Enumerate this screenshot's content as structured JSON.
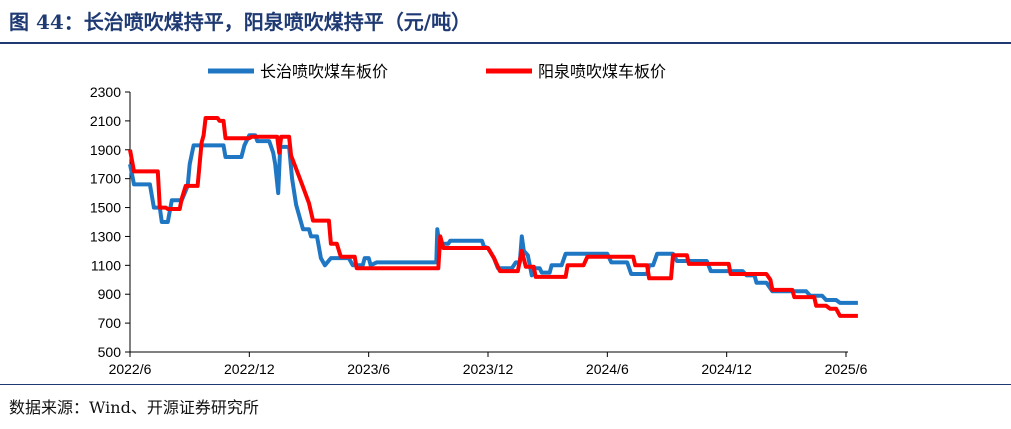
{
  "title": "图 44：长治喷吹煤持平，阳泉喷吹煤持平（元/吨）",
  "source": "数据来源：Wind、开源证券研究所",
  "chart_data": {
    "type": "line",
    "title": "",
    "xlabel": "",
    "ylabel": "",
    "ylim": [
      500,
      2300
    ],
    "yticks": [
      500,
      700,
      900,
      1100,
      1300,
      1500,
      1700,
      1900,
      2100,
      2300
    ],
    "xlim": [
      "2022-06",
      "2025-07"
    ],
    "xticks": [
      "2022/6",
      "2022/12",
      "2023/6",
      "2023/12",
      "2024/6",
      "2024/12",
      "2025/6"
    ],
    "grid": false,
    "legend": "top",
    "series": [
      {
        "name": "长治喷吹煤车板价",
        "color": "#1f77c4",
        "points": [
          [
            0,
            1800
          ],
          [
            0.2,
            1660
          ],
          [
            1.0,
            1660
          ],
          [
            1.2,
            1500
          ],
          [
            1.5,
            1500
          ],
          [
            1.6,
            1400
          ],
          [
            1.9,
            1400
          ],
          [
            2.1,
            1550
          ],
          [
            2.6,
            1550
          ],
          [
            2.9,
            1650
          ],
          [
            3.0,
            1800
          ],
          [
            3.2,
            1930
          ],
          [
            4.7,
            1930
          ],
          [
            4.8,
            1850
          ],
          [
            5.6,
            1850
          ],
          [
            5.75,
            1930
          ],
          [
            6.0,
            2000
          ],
          [
            6.3,
            2000
          ],
          [
            6.4,
            1960
          ],
          [
            7.0,
            1960
          ],
          [
            7.2,
            1880
          ],
          [
            7.3,
            1800
          ],
          [
            7.45,
            1600
          ],
          [
            7.55,
            1920
          ],
          [
            8.0,
            1920
          ],
          [
            8.15,
            1700
          ],
          [
            8.35,
            1520
          ],
          [
            8.7,
            1350
          ],
          [
            9.0,
            1350
          ],
          [
            9.1,
            1300
          ],
          [
            9.4,
            1300
          ],
          [
            9.6,
            1150
          ],
          [
            9.8,
            1100
          ],
          [
            10.1,
            1150
          ],
          [
            11.0,
            1150
          ],
          [
            11.2,
            1100
          ],
          [
            11.7,
            1100
          ],
          [
            11.8,
            1150
          ],
          [
            12.0,
            1150
          ],
          [
            12.1,
            1100
          ],
          [
            12.4,
            1120
          ],
          [
            15.4,
            1120
          ],
          [
            15.45,
            1350
          ],
          [
            15.55,
            1250
          ],
          [
            16.0,
            1250
          ],
          [
            16.1,
            1270
          ],
          [
            17.7,
            1270
          ],
          [
            17.8,
            1230
          ],
          [
            18.0,
            1220
          ],
          [
            18.3,
            1150
          ],
          [
            18.5,
            1080
          ],
          [
            19.2,
            1080
          ],
          [
            19.4,
            1120
          ],
          [
            19.6,
            1120
          ],
          [
            19.7,
            1300
          ],
          [
            19.8,
            1200
          ],
          [
            20.0,
            1170
          ],
          [
            20.1,
            1100
          ],
          [
            20.2,
            1030
          ],
          [
            20.35,
            1080
          ],
          [
            20.6,
            1080
          ],
          [
            20.7,
            1050
          ],
          [
            21.1,
            1050
          ],
          [
            21.2,
            1100
          ],
          [
            21.7,
            1100
          ],
          [
            21.9,
            1180
          ],
          [
            24.0,
            1180
          ],
          [
            24.2,
            1120
          ],
          [
            25.0,
            1120
          ],
          [
            25.2,
            1040
          ],
          [
            26.0,
            1040
          ],
          [
            26.1,
            1100
          ],
          [
            26.3,
            1100
          ],
          [
            26.5,
            1180
          ],
          [
            27.3,
            1180
          ],
          [
            27.5,
            1130
          ],
          [
            29.0,
            1130
          ],
          [
            29.2,
            1060
          ],
          [
            30.8,
            1060
          ],
          [
            31.0,
            1030
          ],
          [
            31.4,
            1030
          ],
          [
            31.5,
            980
          ],
          [
            32.0,
            980
          ],
          [
            32.3,
            920
          ],
          [
            34.0,
            920
          ],
          [
            34.2,
            890
          ],
          [
            34.8,
            890
          ],
          [
            35.0,
            860
          ],
          [
            35.5,
            860
          ],
          [
            35.7,
            840
          ],
          [
            36.6,
            840
          ]
        ]
      },
      {
        "name": "阳泉喷吹煤车板价",
        "color": "#ff0000",
        "points": [
          [
            0,
            1900
          ],
          [
            0.2,
            1750
          ],
          [
            1.4,
            1750
          ],
          [
            1.5,
            1500
          ],
          [
            1.8,
            1500
          ],
          [
            1.9,
            1490
          ],
          [
            2.5,
            1490
          ],
          [
            2.6,
            1560
          ],
          [
            2.8,
            1650
          ],
          [
            3.4,
            1650
          ],
          [
            3.5,
            1800
          ],
          [
            3.6,
            1950
          ],
          [
            3.7,
            2000
          ],
          [
            3.8,
            2120
          ],
          [
            4.4,
            2120
          ],
          [
            4.5,
            2100
          ],
          [
            4.7,
            2100
          ],
          [
            4.8,
            1980
          ],
          [
            6.0,
            1980
          ],
          [
            6.1,
            1990
          ],
          [
            7.4,
            1990
          ],
          [
            7.5,
            1880
          ],
          [
            7.6,
            1990
          ],
          [
            8.0,
            1990
          ],
          [
            8.1,
            1860
          ],
          [
            8.6,
            1680
          ],
          [
            9.0,
            1530
          ],
          [
            9.2,
            1410
          ],
          [
            10.0,
            1410
          ],
          [
            10.1,
            1250
          ],
          [
            10.4,
            1250
          ],
          [
            10.6,
            1160
          ],
          [
            11.3,
            1160
          ],
          [
            11.4,
            1080
          ],
          [
            15.5,
            1080
          ],
          [
            15.6,
            1300
          ],
          [
            15.75,
            1220
          ],
          [
            18.0,
            1220
          ],
          [
            18.3,
            1150
          ],
          [
            18.6,
            1060
          ],
          [
            19.5,
            1060
          ],
          [
            19.7,
            1200
          ],
          [
            19.9,
            1090
          ],
          [
            20.3,
            1090
          ],
          [
            20.4,
            1020
          ],
          [
            21.9,
            1020
          ],
          [
            22.0,
            1100
          ],
          [
            22.8,
            1100
          ],
          [
            23.0,
            1160
          ],
          [
            25.3,
            1160
          ],
          [
            25.4,
            1100
          ],
          [
            26.0,
            1100
          ],
          [
            26.1,
            1010
          ],
          [
            27.2,
            1010
          ],
          [
            27.3,
            1170
          ],
          [
            28.0,
            1170
          ],
          [
            28.1,
            1110
          ],
          [
            30.1,
            1110
          ],
          [
            30.2,
            1040
          ],
          [
            32.0,
            1040
          ],
          [
            32.2,
            1000
          ],
          [
            32.3,
            930
          ],
          [
            33.3,
            930
          ],
          [
            33.4,
            880
          ],
          [
            34.4,
            880
          ],
          [
            34.5,
            820
          ],
          [
            35.0,
            820
          ],
          [
            35.2,
            800
          ],
          [
            35.5,
            800
          ],
          [
            35.7,
            750
          ],
          [
            36.6,
            750
          ]
        ]
      }
    ]
  }
}
